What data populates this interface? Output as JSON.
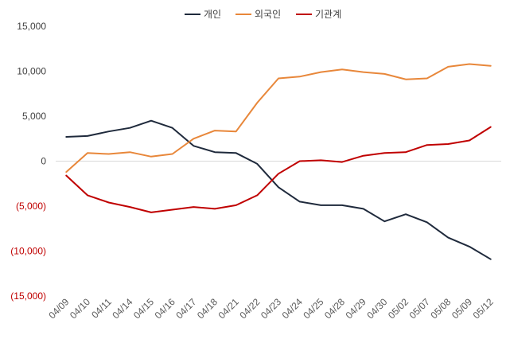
{
  "chart_data": {
    "type": "line",
    "title": "",
    "xlabel": "",
    "ylabel": "",
    "categories": [
      "04/09",
      "04/10",
      "04/11",
      "04/14",
      "04/15",
      "04/16",
      "04/17",
      "04/18",
      "04/21",
      "04/22",
      "04/23",
      "04/24",
      "04/25",
      "04/28",
      "04/29",
      "04/30",
      "05/02",
      "05/07",
      "05/08",
      "05/09",
      "05/12"
    ],
    "ylim": [
      -15000,
      15000
    ],
    "yticks": [
      15000,
      10000,
      5000,
      0,
      -5000,
      -10000,
      -15000
    ],
    "ytick_labels": [
      "15,000",
      "10,000",
      "5,000",
      "0",
      "(5,000)",
      "(10,000)",
      "(15,000)"
    ],
    "negative_tick_color": "#c00000",
    "positive_tick_color": "#404040",
    "grid": false,
    "zero_line": true,
    "legend_position": "top-center",
    "series": [
      {
        "name": "개인",
        "color": "#1f2a3c",
        "values": [
          2700,
          2800,
          3300,
          3700,
          4500,
          3700,
          1700,
          1000,
          900,
          -300,
          -2900,
          -4500,
          -4900,
          -4900,
          -5300,
          -6700,
          -5900,
          -6800,
          -8500,
          -9500,
          -10900
        ]
      },
      {
        "name": "외국인",
        "color": "#e8873a",
        "values": [
          -1200,
          900,
          800,
          1000,
          500,
          800,
          2500,
          3400,
          3300,
          6500,
          9200,
          9400,
          9900,
          10200,
          9900,
          9700,
          9100,
          9200,
          10500,
          10800,
          10600
        ]
      },
      {
        "name": "기관계",
        "color": "#c00000",
        "values": [
          -1600,
          -3800,
          -4600,
          -5100,
          -5700,
          -5400,
          -5100,
          -5300,
          -4900,
          -3800,
          -1400,
          0,
          100,
          -100,
          600,
          900,
          1000,
          1800,
          1900,
          2300,
          3800
        ]
      }
    ]
  }
}
